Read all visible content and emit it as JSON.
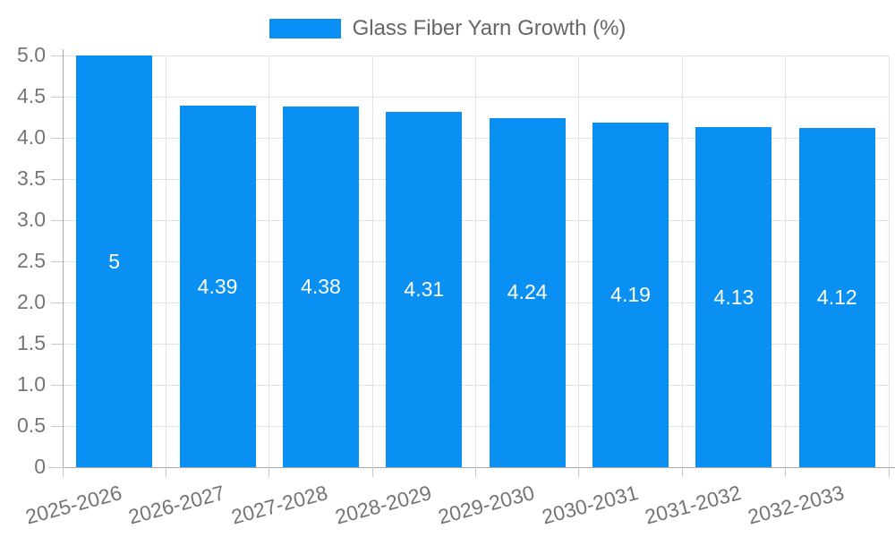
{
  "chart_data": {
    "type": "bar",
    "title": "",
    "legend": {
      "label": "Glass Fiber Yarn Growth (%)",
      "position": "top-center"
    },
    "categories": [
      "2025-2026",
      "2026-2027",
      "2027-2028",
      "2028-2029",
      "2029-2030",
      "2030-2031",
      "2031-2032",
      "2032-2033"
    ],
    "series": [
      {
        "name": "Glass Fiber Yarn Growth (%)",
        "values": [
          5,
          4.39,
          4.38,
          4.31,
          4.24,
          4.19,
          4.13,
          4.12
        ]
      }
    ],
    "value_labels": [
      "5",
      "4.39",
      "4.38",
      "4.31",
      "4.24",
      "4.19",
      "4.13",
      "4.12"
    ],
    "xlabel": "",
    "ylabel": "",
    "ylim": [
      0,
      5
    ],
    "y_tick_labels": [
      "0",
      "0.5",
      "1.0",
      "1.5",
      "2.0",
      "2.5",
      "3.0",
      "3.5",
      "4.0",
      "4.5",
      "5.0"
    ],
    "grid": true,
    "x_tick_rotation_deg": -15,
    "colors": {
      "bar": "#0a90f2",
      "value_label": "#ffffff",
      "axis_label": "#757575",
      "legend_text": "#666666",
      "gridline": "#e3e3e3",
      "axis_line": "#a8a8a8"
    }
  }
}
